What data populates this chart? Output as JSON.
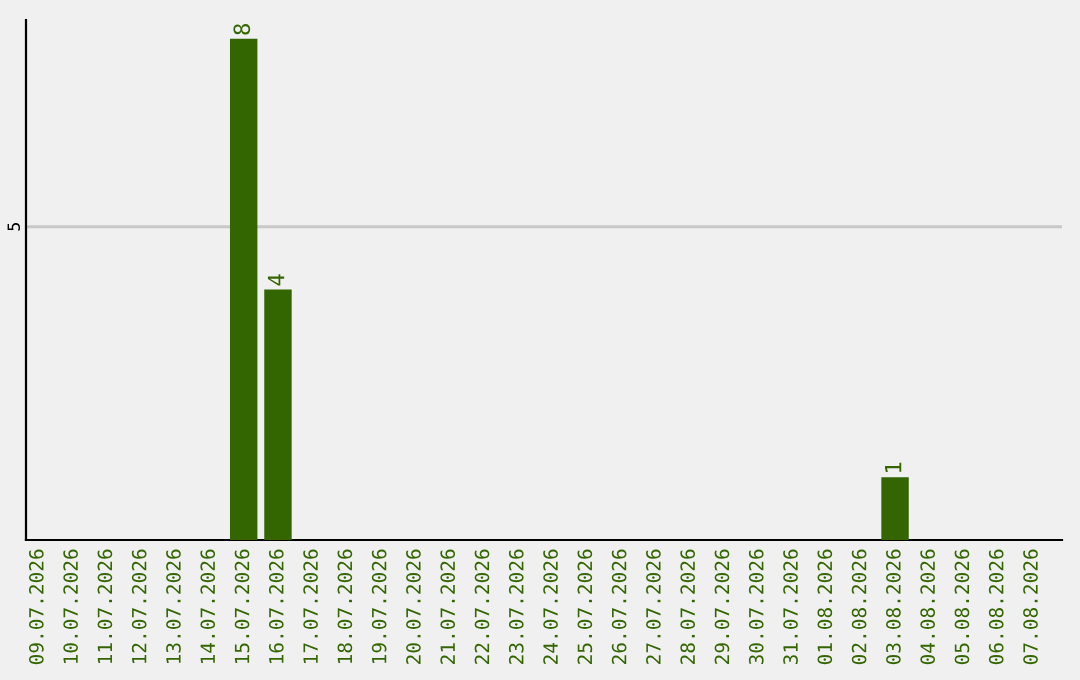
{
  "chart_data": {
    "type": "bar",
    "categories": [
      "09.07.2026",
      "10.07.2026",
      "11.07.2026",
      "12.07.2026",
      "13.07.2026",
      "14.07.2026",
      "15.07.2026",
      "16.07.2026",
      "17.07.2026",
      "18.07.2026",
      "19.07.2026",
      "20.07.2026",
      "21.07.2026",
      "22.07.2026",
      "23.07.2026",
      "24.07.2026",
      "25.07.2026",
      "26.07.2026",
      "27.07.2026",
      "28.07.2026",
      "29.07.2026",
      "30.07.2026",
      "31.07.2026",
      "01.08.2026",
      "02.08.2026",
      "03.08.2026",
      "04.08.2026",
      "05.08.2026",
      "06.08.2026",
      "07.08.2026"
    ],
    "values": [
      0,
      0,
      0,
      0,
      0,
      0,
      8,
      4,
      0,
      0,
      0,
      0,
      0,
      0,
      0,
      0,
      0,
      0,
      0,
      0,
      0,
      0,
      0,
      0,
      0,
      1,
      0,
      0,
      0,
      0
    ],
    "color": "#336600",
    "value_labels": [
      null,
      null,
      null,
      null,
      null,
      null,
      "8",
      "4",
      null,
      null,
      null,
      null,
      null,
      null,
      null,
      null,
      null,
      null,
      null,
      null,
      null,
      null,
      null,
      null,
      null,
      "1",
      null,
      null,
      null,
      null
    ],
    "ylim": [
      0,
      8.3
    ],
    "yticks": [
      5
    ],
    "grid": "y"
  }
}
